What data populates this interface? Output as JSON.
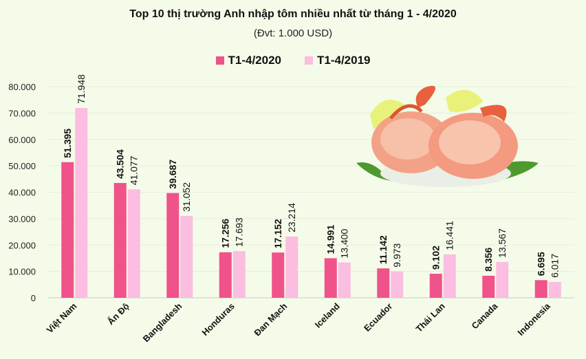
{
  "colors": {
    "series_2020": "#f0528a",
    "series_2019": "#fbbde0",
    "background": "#f5fbe9"
  },
  "image_icon": "shrimp-plate",
  "chart_data": {
    "type": "bar",
    "title": "Top 10 thị trường Anh nhập tôm nhiều nhất từ tháng 1 - 4/2020",
    "subtitle": "(Đvt: 1.000 USD)",
    "categories": [
      "Việt Nam",
      "Ấn Độ",
      "Bangladesh",
      "Honduras",
      "Đan Mạch",
      "Iceland",
      "Ecuador",
      "Thái Lan",
      "Canada",
      "Indonesia"
    ],
    "series": [
      {
        "name": "T1-4/2020",
        "values": [
          51.395,
          43.504,
          39.687,
          17.256,
          17.152,
          14.991,
          11.142,
          9.102,
          8.356,
          6.695
        ],
        "labels": [
          "51.395",
          "43.504",
          "39.687",
          "17.256",
          "17.152",
          "14.991",
          "11.142",
          "9.102",
          "8.356",
          "6.695"
        ]
      },
      {
        "name": "T1-4/2019",
        "values": [
          71.948,
          41.077,
          31.052,
          17.693,
          23.214,
          13.4,
          9.973,
          16.441,
          13.567,
          6.017
        ],
        "labels": [
          "71.948",
          "41.077",
          "31.052",
          "17.693",
          "23.214",
          "13.400",
          "9.973",
          "16.441",
          "13.567",
          "6.017"
        ]
      }
    ],
    "y_ticks": [
      "0",
      "10.000",
      "20.000",
      "30.000",
      "40.000",
      "50.000",
      "60.000",
      "70.000",
      "80.000"
    ],
    "ylim": [
      0,
      80
    ],
    "grid": true,
    "legend_position": "top-center"
  }
}
